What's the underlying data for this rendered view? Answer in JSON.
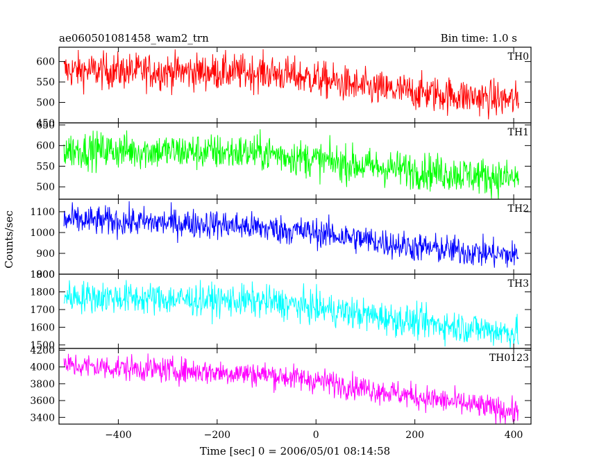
{
  "header": {
    "title": "ae060501081458_wam2_trn",
    "bin_time": "Bin time: 1.0 s"
  },
  "chart_data": {
    "type": "line",
    "xlabel": "Time [sec] 0 = 2006/05/01 08:14:58",
    "ylabel": "Counts/sec",
    "xlim": [
      -520,
      435
    ],
    "x_ticks": [
      -400,
      -200,
      0,
      200,
      400
    ],
    "x_tick_labels": [
      "−400",
      "−200",
      "0",
      "200",
      "400"
    ],
    "x_range": [
      -510,
      410
    ],
    "series": [
      {
        "name": "TH0",
        "color": "#ff0000",
        "ylim": [
          450,
          635
        ],
        "y_ticks": [
          450,
          500,
          550,
          600
        ],
        "y_tick_labels": [
          "450",
          "500",
          "550",
          "600"
        ],
        "trend": [
          [
            -510,
            578
          ],
          [
            -100,
            573
          ],
          [
            0,
            558
          ],
          [
            100,
            535
          ],
          [
            400,
            505
          ]
        ],
        "noise": 22
      },
      {
        "name": "TH1",
        "color": "#00ff00",
        "ylim": [
          470,
          655
        ],
        "y_ticks": [
          500,
          550,
          600,
          650
        ],
        "y_tick_labels": [
          "500",
          "550",
          "600",
          "650"
        ],
        "trend": [
          [
            -510,
            590
          ],
          [
            -100,
            582
          ],
          [
            0,
            565
          ],
          [
            100,
            550
          ],
          [
            400,
            520
          ]
        ],
        "noise": 22
      },
      {
        "name": "TH2",
        "color": "#0000ff",
        "ylim": [
          800,
          1160
        ],
        "y_ticks": [
          800,
          900,
          1000,
          1100
        ],
        "y_tick_labels": [
          "800",
          "900",
          "1000",
          "1100"
        ],
        "trend": [
          [
            -510,
            1060
          ],
          [
            -200,
            1040
          ],
          [
            0,
            1000
          ],
          [
            200,
            930
          ],
          [
            400,
            890
          ]
        ],
        "noise": 35
      },
      {
        "name": "TH3",
        "color": "#00ffff",
        "ylim": [
          1480,
          1900
        ],
        "y_ticks": [
          1500,
          1600,
          1700,
          1800,
          1900
        ],
        "y_tick_labels": [
          "1500",
          "1600",
          "1700",
          "1800",
          "1900"
        ],
        "trend": [
          [
            -510,
            1775
          ],
          [
            -100,
            1745
          ],
          [
            0,
            1710
          ],
          [
            200,
            1630
          ],
          [
            400,
            1570
          ]
        ],
        "noise": 45
      },
      {
        "name": "TH0123",
        "color": "#ff00ff",
        "ylim": [
          3320,
          4220
        ],
        "y_ticks": [
          3400,
          3600,
          3800,
          4000,
          4200
        ],
        "y_tick_labels": [
          "3400",
          "3600",
          "3800",
          "4000",
          "4200"
        ],
        "trend": [
          [
            -510,
            4020
          ],
          [
            -100,
            3910
          ],
          [
            0,
            3840
          ],
          [
            200,
            3650
          ],
          [
            400,
            3470
          ]
        ],
        "noise": 75
      }
    ]
  }
}
